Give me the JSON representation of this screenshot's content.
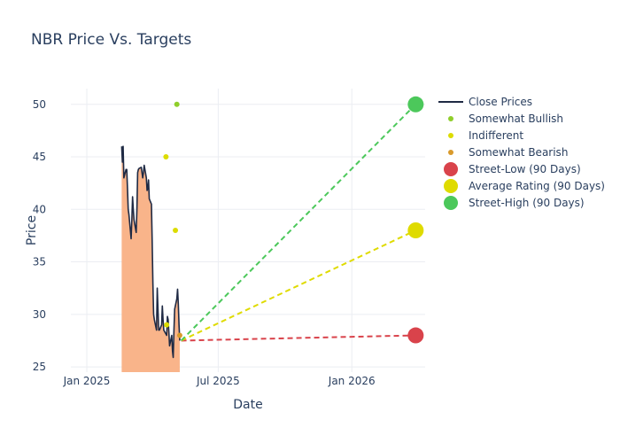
{
  "chart_data": {
    "type": "line",
    "title": "NBR Price Vs. Targets",
    "xlabel": "Date",
    "ylabel": "Price",
    "xlim": [
      "2024-12-10",
      "2026-04-12"
    ],
    "ylim": [
      24.5,
      51.5
    ],
    "x_ticks": [
      {
        "date": "2025-01-01",
        "label": "Jan 2025"
      },
      {
        "date": "2025-07-01",
        "label": "Jul 2025"
      },
      {
        "date": "2026-01-01",
        "label": "Jan 2026"
      }
    ],
    "y_ticks": [
      25,
      30,
      35,
      40,
      45,
      50
    ],
    "close_prices": {
      "name": "Close Prices",
      "color": "#1f2a44",
      "fill_color": "#f9b48a",
      "points": [
        [
          "2025-02-18",
          46.0
        ],
        [
          "2025-02-19",
          44.5
        ],
        [
          "2025-02-20",
          46.0
        ],
        [
          "2025-02-21",
          43.0
        ],
        [
          "2025-02-24",
          43.8
        ],
        [
          "2025-02-25",
          43.8
        ],
        [
          "2025-02-26",
          42.0
        ],
        [
          "2025-02-27",
          40.0
        ],
        [
          "2025-02-28",
          39.5
        ],
        [
          "2025-03-03",
          37.2
        ],
        [
          "2025-03-04",
          39.0
        ],
        [
          "2025-03-05",
          41.2
        ],
        [
          "2025-03-06",
          40.0
        ],
        [
          "2025-03-07",
          39.0
        ],
        [
          "2025-03-10",
          37.8
        ],
        [
          "2025-03-11",
          40.0
        ],
        [
          "2025-03-12",
          43.5
        ],
        [
          "2025-03-13",
          43.8
        ],
        [
          "2025-03-14",
          43.9
        ],
        [
          "2025-03-17",
          44.0
        ],
        [
          "2025-03-18",
          43.5
        ],
        [
          "2025-03-19",
          43.0
        ],
        [
          "2025-03-20",
          43.5
        ],
        [
          "2025-03-21",
          44.2
        ],
        [
          "2025-03-24",
          43.0
        ],
        [
          "2025-03-25",
          41.8
        ],
        [
          "2025-03-26",
          42.0
        ],
        [
          "2025-03-27",
          42.8
        ],
        [
          "2025-03-28",
          41.0
        ],
        [
          "2025-03-31",
          40.5
        ],
        [
          "2025-04-01",
          37.0
        ],
        [
          "2025-04-02",
          33.0
        ],
        [
          "2025-04-03",
          30.0
        ],
        [
          "2025-04-04",
          29.5
        ],
        [
          "2025-04-07",
          28.5
        ],
        [
          "2025-04-08",
          32.5
        ],
        [
          "2025-04-09",
          30.5
        ],
        [
          "2025-04-10",
          28.5
        ],
        [
          "2025-04-11",
          28.5
        ],
        [
          "2025-04-14",
          29.0
        ],
        [
          "2025-04-15",
          30.8
        ],
        [
          "2025-04-16",
          29.5
        ],
        [
          "2025-04-17",
          28.5
        ],
        [
          "2025-04-21",
          28.0
        ],
        [
          "2025-04-22",
          29.8
        ],
        [
          "2025-04-23",
          29.5
        ],
        [
          "2025-04-24",
          28.3
        ],
        [
          "2025-04-25",
          27.0
        ],
        [
          "2025-04-28",
          28.0
        ],
        [
          "2025-04-29",
          26.5
        ],
        [
          "2025-04-30",
          25.9
        ],
        [
          "2025-05-01",
          28.5
        ],
        [
          "2025-05-02",
          30.5
        ],
        [
          "2025-05-05",
          31.5
        ],
        [
          "2025-05-06",
          32.4
        ],
        [
          "2025-05-07",
          31.0
        ],
        [
          "2025-05-08",
          29.0
        ],
        [
          "2025-05-09",
          27.5
        ]
      ]
    },
    "rating_points": [
      {
        "name": "Somewhat Bullish",
        "color": "#8fce2b",
        "points": [
          [
            "2025-05-05",
            50.0
          ]
        ]
      },
      {
        "name": "Indifferent",
        "color": "#dcdc00",
        "points": [
          [
            "2025-04-20",
            45.0
          ],
          [
            "2025-05-03",
            38.0
          ],
          [
            "2025-04-21",
            29.0
          ]
        ]
      },
      {
        "name": "Somewhat Bearish",
        "color": "#d99a2b",
        "points": [
          [
            "2025-05-09",
            28.0
          ]
        ]
      }
    ],
    "targets": [
      {
        "name": "Street-Low (90 Days)",
        "color": "#d9434b",
        "start": [
          "2025-05-11",
          27.5
        ],
        "end": [
          "2026-03-30",
          28.0
        ]
      },
      {
        "name": "Average Rating (90 Days)",
        "color": "#dfdb00",
        "start": [
          "2025-05-11",
          27.5
        ],
        "end": [
          "2026-03-30",
          38.0
        ]
      },
      {
        "name": "Street-High (90 Days)",
        "color": "#4cc85b",
        "start": [
          "2025-05-11",
          27.5
        ],
        "end": [
          "2026-03-30",
          50.0
        ]
      }
    ],
    "legend": [
      {
        "label": "Close Prices",
        "kind": "line",
        "color": "#1f2a44"
      },
      {
        "label": "Somewhat Bullish",
        "kind": "dot",
        "color": "#8fce2b"
      },
      {
        "label": "Indifferent",
        "kind": "dot",
        "color": "#dcdc00"
      },
      {
        "label": "Somewhat Bearish",
        "kind": "dot",
        "color": "#d99a2b"
      },
      {
        "label": "Street-Low (90 Days)",
        "kind": "bigdot",
        "color": "#d9434b"
      },
      {
        "label": "Average Rating (90 Days)",
        "kind": "bigdot",
        "color": "#dfdb00"
      },
      {
        "label": "Street-High (90 Days)",
        "kind": "bigdot",
        "color": "#4cc85b"
      }
    ],
    "legend_position": "right"
  }
}
